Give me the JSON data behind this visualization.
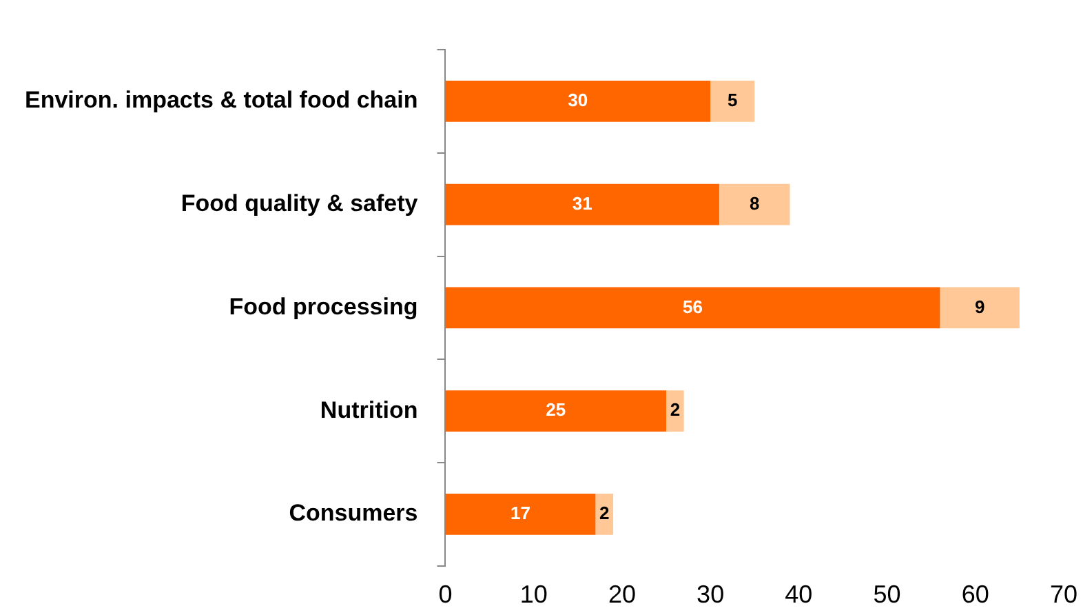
{
  "chart_data": {
    "type": "bar",
    "orientation": "horizontal",
    "stacked": true,
    "categories": [
      "Environ. impacts & total food chain",
      "Food quality & safety",
      "Food processing",
      "Nutrition",
      "Consumers"
    ],
    "series": [
      {
        "color": "#ff6600",
        "values": [
          30,
          31,
          56,
          25,
          17
        ]
      },
      {
        "color": "#ffc896",
        "values": [
          5,
          8,
          9,
          2,
          2
        ]
      }
    ],
    "xlim": [
      0,
      70
    ],
    "xticks": [
      0,
      10,
      20,
      30,
      40,
      50,
      60,
      70
    ],
    "grid": false,
    "legend": false,
    "data_labels": true
  }
}
